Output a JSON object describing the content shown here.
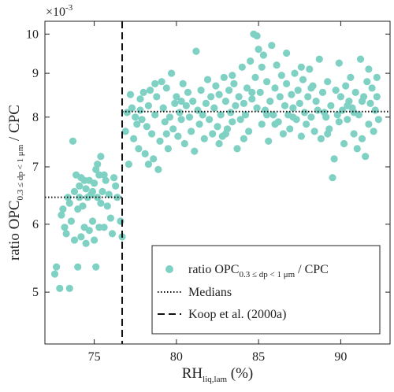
{
  "chart_data": {
    "type": "scatter",
    "title": "",
    "xlabel": {
      "main": "RH",
      "sub": "liq,lam",
      "suffix": " (%)"
    },
    "ylabel": {
      "pre": "ratio OPC",
      "sub": "0.3 ≤ dp < 1 μm",
      "post": " / CPC"
    },
    "y_multiplier": "×10",
    "y_multiplier_exp": "-3",
    "y_scale": "log",
    "xlim": [
      72,
      93
    ],
    "ylim": [
      4.35,
      10.35
    ],
    "xticks": [
      75,
      80,
      85,
      90
    ],
    "xtick_labels": [
      "75",
      "80",
      "85",
      "90"
    ],
    "yticks": [
      5,
      6,
      7,
      8,
      9,
      10
    ],
    "ytick_labels": [
      "5",
      "6",
      "7",
      "8",
      "9",
      "10"
    ],
    "grid": false,
    "legend_position": "bottom-right",
    "legend": [
      {
        "label_pre": "ratio OPC",
        "label_sub": "0.3 ≤ dp < 1 μm",
        "label_post": " / CPC",
        "style": "marker"
      },
      {
        "label": "Medians",
        "style": "dotted"
      },
      {
        "label": "Koop et al. (2000a)",
        "style": "dashed"
      }
    ],
    "colors": {
      "points": "#7fd1c3",
      "lines": "#111111"
    },
    "threshold_x": 76.7,
    "medians": [
      {
        "x_range": [
          72,
          76.7
        ],
        "y": 6.45
      },
      {
        "x_range": [
          76.7,
          93
        ],
        "y": 8.12
      }
    ],
    "series": [
      {
        "name": "ratio OPC 0.3 ≤ dp < 1 μm / CPC",
        "points": [
          [
            72.6,
            5.25
          ],
          [
            72.7,
            5.35
          ],
          [
            72.9,
            5.05
          ],
          [
            73.0,
            6.15
          ],
          [
            73.1,
            6.25
          ],
          [
            73.2,
            5.95
          ],
          [
            73.3,
            5.85
          ],
          [
            73.4,
            6.45
          ],
          [
            73.5,
            5.05
          ],
          [
            73.6,
            6.05
          ],
          [
            73.7,
            7.5
          ],
          [
            73.8,
            6.55
          ],
          [
            73.8,
            5.75
          ],
          [
            73.9,
            6.85
          ],
          [
            74.0,
            6.25
          ],
          [
            74.0,
            5.35
          ],
          [
            74.1,
            6.65
          ],
          [
            74.2,
            6.8
          ],
          [
            74.2,
            5.8
          ],
          [
            74.3,
            6.3
          ],
          [
            74.4,
            6.75
          ],
          [
            74.4,
            5.95
          ],
          [
            74.5,
            6.6
          ],
          [
            74.5,
            5.7
          ],
          [
            74.6,
            6.45
          ],
          [
            74.7,
            6.75
          ],
          [
            74.7,
            5.9
          ],
          [
            74.8,
            6.5
          ],
          [
            74.9,
            6.55
          ],
          [
            74.9,
            6.05
          ],
          [
            75.0,
            6.7
          ],
          [
            75.0,
            5.75
          ],
          [
            75.1,
            6.95
          ],
          [
            75.1,
            5.35
          ],
          [
            75.2,
            7.05
          ],
          [
            75.2,
            6.45
          ],
          [
            75.3,
            6.85
          ],
          [
            75.3,
            5.95
          ],
          [
            75.4,
            7.2
          ],
          [
            75.4,
            6.35
          ],
          [
            75.5,
            6.55
          ],
          [
            75.6,
            5.95
          ],
          [
            75.7,
            6.75
          ],
          [
            75.8,
            6.3
          ],
          [
            75.9,
            6.5
          ],
          [
            76.0,
            6.1
          ],
          [
            76.1,
            5.85
          ],
          [
            76.2,
            6.8
          ],
          [
            76.3,
            6.65
          ],
          [
            76.4,
            6.45
          ],
          [
            76.6,
            6.05
          ],
          [
            76.7,
            5.8
          ],
          [
            73.5,
            6.35
          ],
          [
            74.1,
            6.45
          ],
          [
            75.6,
            6.85
          ],
          [
            76.9,
            7.7
          ],
          [
            77.0,
            8.1
          ],
          [
            77.1,
            7.05
          ],
          [
            77.2,
            8.5
          ],
          [
            77.3,
            8.2
          ],
          [
            77.4,
            7.55
          ],
          [
            77.5,
            8.0
          ],
          [
            77.6,
            7.85
          ],
          [
            77.7,
            7.35
          ],
          [
            77.8,
            8.15
          ],
          [
            77.9,
            7.95
          ],
          [
            78.0,
            8.55
          ],
          [
            78.1,
            7.25
          ],
          [
            78.2,
            7.8
          ],
          [
            78.3,
            8.25
          ],
          [
            78.4,
            8.6
          ],
          [
            78.5,
            7.65
          ],
          [
            78.6,
            7.15
          ],
          [
            78.7,
            8.05
          ],
          [
            78.8,
            8.45
          ],
          [
            78.9,
            6.95
          ],
          [
            79.0,
            7.5
          ],
          [
            79.1,
            8.8
          ],
          [
            79.2,
            8.2
          ],
          [
            79.3,
            7.9
          ],
          [
            79.4,
            8.65
          ],
          [
            79.5,
            7.35
          ],
          [
            79.6,
            8.0
          ],
          [
            79.7,
            9.0
          ],
          [
            79.8,
            7.75
          ],
          [
            79.9,
            8.3
          ],
          [
            80.0,
            8.45
          ],
          [
            80.1,
            7.6
          ],
          [
            80.2,
            8.1
          ],
          [
            80.3,
            7.95
          ],
          [
            80.4,
            8.75
          ],
          [
            80.5,
            7.45
          ],
          [
            80.6,
            8.25
          ],
          [
            80.7,
            8.55
          ],
          [
            80.8,
            8.0
          ],
          [
            80.9,
            7.7
          ],
          [
            81.0,
            8.35
          ],
          [
            81.2,
            9.55
          ],
          [
            81.3,
            8.15
          ],
          [
            81.4,
            7.85
          ],
          [
            81.5,
            8.6
          ],
          [
            81.6,
            8.05
          ],
          [
            81.7,
            7.55
          ],
          [
            81.8,
            8.3
          ],
          [
            81.9,
            8.85
          ],
          [
            82.0,
            7.95
          ],
          [
            82.1,
            8.45
          ],
          [
            82.2,
            7.65
          ],
          [
            82.3,
            8.2
          ],
          [
            82.4,
            8.7
          ],
          [
            82.5,
            7.8
          ],
          [
            82.6,
            8.5
          ],
          [
            82.7,
            8.05
          ],
          [
            82.8,
            7.6
          ],
          [
            82.9,
            8.9
          ],
          [
            83.0,
            8.35
          ],
          [
            83.1,
            7.75
          ],
          [
            83.2,
            8.6
          ],
          [
            83.3,
            8.1
          ],
          [
            83.4,
            7.9
          ],
          [
            83.5,
            8.75
          ],
          [
            83.6,
            8.25
          ],
          [
            83.7,
            7.35
          ],
          [
            83.8,
            8.45
          ],
          [
            83.9,
            7.95
          ],
          [
            84.0,
            9.15
          ],
          [
            84.1,
            8.3
          ],
          [
            84.2,
            8.05
          ],
          [
            84.3,
            8.65
          ],
          [
            84.4,
            7.7
          ],
          [
            84.5,
            9.3
          ],
          [
            84.6,
            8.4
          ],
          [
            84.7,
            10.0
          ],
          [
            84.8,
            8.9
          ],
          [
            84.9,
            8.2
          ],
          [
            85.0,
            9.6
          ],
          [
            85.1,
            8.55
          ],
          [
            85.2,
            7.85
          ],
          [
            85.3,
            9.45
          ],
          [
            85.4,
            8.15
          ],
          [
            85.5,
            8.8
          ],
          [
            85.6,
            7.5
          ],
          [
            85.7,
            8.35
          ],
          [
            85.8,
            9.7
          ],
          [
            85.9,
            8.05
          ],
          [
            86.0,
            8.65
          ],
          [
            86.1,
            9.2
          ],
          [
            86.2,
            7.9
          ],
          [
            86.3,
            8.45
          ],
          [
            86.4,
            8.95
          ],
          [
            86.5,
            7.65
          ],
          [
            86.6,
            8.25
          ],
          [
            86.7,
            8.75
          ],
          [
            86.8,
            8.05
          ],
          [
            86.9,
            7.75
          ],
          [
            87.0,
            8.5
          ],
          [
            87.1,
            8.2
          ],
          [
            87.2,
            9.0
          ],
          [
            87.3,
            7.95
          ],
          [
            87.4,
            8.6
          ],
          [
            87.5,
            8.3
          ],
          [
            87.6,
            7.6
          ],
          [
            87.7,
            8.85
          ],
          [
            87.8,
            8.1
          ],
          [
            87.9,
            7.85
          ],
          [
            88.0,
            8.45
          ],
          [
            88.1,
            9.1
          ],
          [
            88.2,
            8.0
          ],
          [
            88.3,
            8.7
          ],
          [
            88.4,
            7.7
          ],
          [
            88.5,
            8.35
          ],
          [
            88.6,
            8.15
          ],
          [
            88.7,
            9.35
          ],
          [
            88.8,
            7.55
          ],
          [
            88.9,
            8.55
          ],
          [
            89.0,
            8.1
          ],
          [
            89.1,
            8.0
          ],
          [
            89.2,
            8.8
          ],
          [
            89.3,
            7.75
          ],
          [
            89.4,
            8.25
          ],
          [
            89.5,
            6.8
          ],
          [
            89.6,
            7.15
          ],
          [
            89.7,
            8.6
          ],
          [
            89.8,
            8.05
          ],
          [
            89.9,
            7.9
          ],
          [
            90.0,
            8.45
          ],
          [
            90.1,
            8.15
          ],
          [
            90.2,
            7.45
          ],
          [
            90.3,
            8.7
          ],
          [
            90.4,
            7.95
          ],
          [
            90.5,
            8.35
          ],
          [
            90.6,
            8.9
          ],
          [
            90.7,
            8.2
          ],
          [
            90.8,
            7.65
          ],
          [
            90.9,
            8.55
          ],
          [
            91.0,
            7.35
          ],
          [
            91.1,
            8.05
          ],
          [
            91.2,
            9.35
          ],
          [
            91.3,
            7.55
          ],
          [
            91.4,
            8.45
          ],
          [
            91.5,
            7.2
          ],
          [
            91.6,
            8.8
          ],
          [
            91.7,
            7.85
          ],
          [
            91.8,
            8.3
          ],
          [
            91.9,
            8.65
          ],
          [
            92.0,
            7.7
          ],
          [
            92.1,
            8.15
          ],
          [
            92.2,
            8.9
          ],
          [
            92.3,
            7.95
          ],
          [
            84.6,
            8.55
          ],
          [
            84.9,
            9.95
          ],
          [
            85.2,
            9.15
          ],
          [
            86.7,
            9.5
          ],
          [
            87.1,
            8.0
          ],
          [
            80.3,
            8.35
          ],
          [
            79.4,
            7.65
          ],
          [
            78.7,
            8.75
          ],
          [
            82.6,
            7.45
          ],
          [
            83.4,
            8.95
          ],
          [
            84.1,
            7.55
          ],
          [
            85.5,
            8.05
          ],
          [
            88.2,
            8.65
          ],
          [
            89.9,
            9.25
          ],
          [
            91.3,
            8.35
          ],
          [
            90.8,
            8.1
          ],
          [
            81.1,
            7.3
          ],
          [
            77.8,
            8.4
          ],
          [
            78.3,
            7.05
          ],
          [
            83.0,
            7.65
          ],
          [
            86.0,
            7.85
          ],
          [
            87.6,
            9.15
          ],
          [
            89.2,
            7.65
          ],
          [
            90.4,
            8.25
          ],
          [
            91.7,
            9.1
          ],
          [
            92.2,
            8.45
          ]
        ]
      }
    ]
  }
}
